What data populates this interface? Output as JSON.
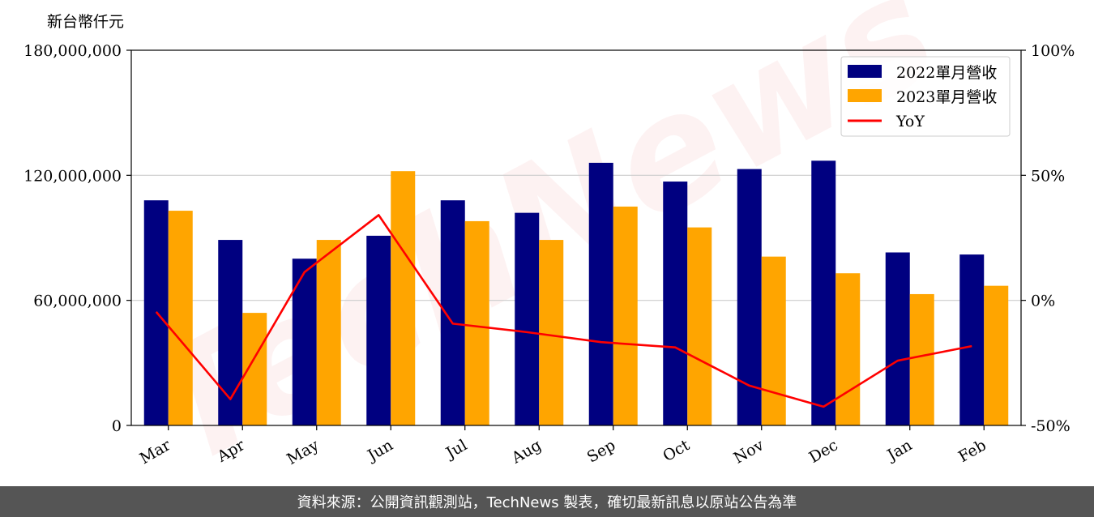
{
  "unit_label": "新台幣仟元",
  "watermark": "TechNews",
  "footer_text": "資料來源：公開資訊觀測站，TechNews 製表，確切最新訊息以原站公告為準",
  "colors": {
    "bar_2022": "#000080",
    "bar_2023": "#FFA500",
    "yoy_line": "#FF0000",
    "grid": "#cccccc",
    "watermark": "#f0a0a0",
    "footer_bg": "#555555"
  },
  "chart_data": {
    "type": "bar",
    "title": "",
    "xlabel": "",
    "ylabel": "",
    "categories": [
      "Mar",
      "Apr",
      "May",
      "Jun",
      "Jul",
      "Aug",
      "Sep",
      "Oct",
      "Nov",
      "Dec",
      "Jan",
      "Feb"
    ],
    "series": [
      {
        "name": "2022單月營收",
        "type": "bar",
        "values": [
          108000000,
          89000000,
          80000000,
          91000000,
          108000000,
          102000000,
          126000000,
          117000000,
          123000000,
          127000000,
          83000000,
          82000000
        ]
      },
      {
        "name": "2023單月營收",
        "type": "bar",
        "values": [
          103000000,
          54000000,
          89000000,
          122000000,
          98000000,
          89000000,
          105000000,
          95000000,
          81000000,
          73000000,
          63000000,
          67000000
        ]
      },
      {
        "name": "YoY",
        "type": "line",
        "axis": "right",
        "values": [
          -4.6,
          -39.5,
          11.3,
          34.1,
          -9.3,
          -12.7,
          -16.7,
          -18.8,
          -34.1,
          -42.5,
          -24.1,
          -18.3
        ]
      }
    ],
    "ylim": [
      0,
      180000000
    ],
    "y_ticks": [
      "0",
      "60,000,000",
      "120,000,000",
      "180,000,000"
    ],
    "y_tick_values": [
      0,
      60000000,
      120000000,
      180000000
    ],
    "y2lim": [
      -50,
      100
    ],
    "y2_ticks": [
      "-50%",
      "0%",
      "50%",
      "100%"
    ],
    "y2_tick_values": [
      -50,
      0,
      50,
      100
    ],
    "grid": "horizontal",
    "legend_position": "top-right"
  }
}
